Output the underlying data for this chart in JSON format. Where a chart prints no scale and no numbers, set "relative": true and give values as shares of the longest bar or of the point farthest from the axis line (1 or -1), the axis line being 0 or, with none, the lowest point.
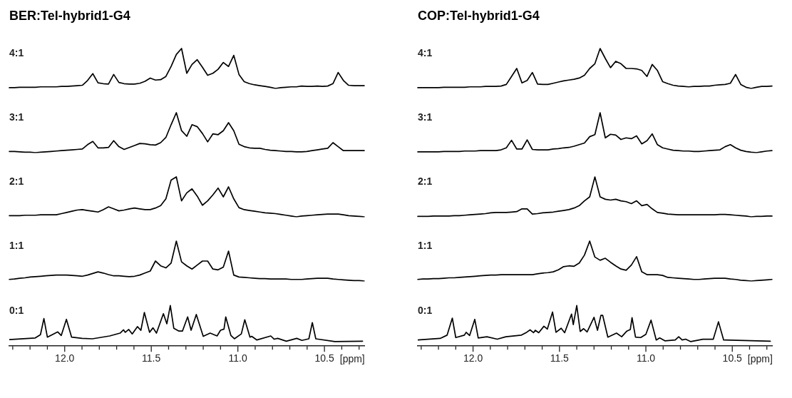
{
  "chart_data": [
    {
      "type": "line",
      "title": "BER:Tel-hybrid1-G4",
      "relative": true,
      "tick_labels": false,
      "marker": "none",
      "categories": [
        null,
        null,
        null,
        null,
        null,
        null,
        null,
        null,
        null,
        null,
        null,
        null,
        null,
        null,
        null,
        null,
        null,
        null,
        null,
        null,
        null,
        null,
        null,
        null,
        null,
        null,
        null,
        null,
        null,
        null,
        null,
        null,
        null,
        null,
        null,
        null,
        null,
        null,
        null,
        null,
        null,
        null,
        null,
        null,
        null,
        null,
        null,
        null,
        null,
        null,
        null,
        null,
        null,
        null,
        null,
        null,
        null,
        null,
        null,
        null,
        null,
        null,
        null,
        null,
        null,
        null,
        null,
        null,
        null
      ],
      "series": [
        {
          "name": "4:1",
          "color": "#000000",
          "values": [
            0.02,
            0.02,
            0.03,
            0.03,
            0.03,
            0.03,
            0.04,
            0.04,
            0.04,
            0.04,
            0.05,
            0.05,
            0.06,
            0.07,
            0.08,
            0.2,
            0.37,
            0.14,
            0.12,
            0.11,
            0.35,
            0.15,
            0.12,
            0.11,
            0.11,
            0.13,
            0.18,
            0.26,
            0.21,
            0.22,
            0.3,
            0.55,
            0.85,
            1.0,
            0.38,
            0.6,
            0.72,
            0.53,
            0.33,
            0.38,
            0.48,
            0.65,
            0.55,
            0.83,
            0.35,
            0.17,
            0.12,
            0.09,
            0.07,
            0.05,
            0.03,
            0,
            0.02,
            0.03,
            0.04,
            0.04,
            0.06,
            0.05,
            0.05,
            0.06,
            0.05,
            0.06,
            0.12,
            0.4,
            0.2,
            0.08,
            0.07,
            0.07,
            0.07
          ]
        }
      ]
    },
    {
      "type": "line",
      "title": "COP:Tel-hybrid1-G4",
      "relative": true,
      "tick_labels": false,
      "marker": "none",
      "categories": [
        null,
        null,
        null,
        null,
        null,
        null,
        null,
        null,
        null,
        null,
        null,
        null,
        null,
        null,
        null,
        null,
        null,
        null,
        null,
        null,
        null,
        null,
        null,
        null,
        null,
        null,
        null,
        null,
        null,
        null,
        null,
        null,
        null,
        null,
        null,
        null,
        null,
        null,
        null,
        null,
        null,
        null,
        null,
        null,
        null,
        null,
        null,
        null,
        null,
        null,
        null,
        null,
        null,
        null,
        null,
        null,
        null,
        null,
        null,
        null,
        null,
        null,
        null,
        null,
        null,
        null,
        null,
        null,
        null
      ],
      "series": [
        {
          "name": "4:1",
          "color": "#000000",
          "values": [
            0.02,
            0.02,
            0.02,
            0.02,
            0.02,
            0.03,
            0.03,
            0.03,
            0.03,
            0.03,
            0.04,
            0.04,
            0.04,
            0.05,
            0.05,
            0.05,
            0.06,
            0.1,
            0.3,
            0.5,
            0.14,
            0.2,
            0.4,
            0.11,
            0.1,
            0.1,
            0.13,
            0.16,
            0.19,
            0.21,
            0.23,
            0.26,
            0.33,
            0.5,
            0.62,
            1.0,
            0.75,
            0.52,
            0.68,
            0.62,
            0.5,
            0.5,
            0.49,
            0.45,
            0.3,
            0.6,
            0.45,
            0.17,
            0.12,
            0.08,
            0.06,
            0.05,
            0.04,
            0.05,
            0.05,
            0.06,
            0.06,
            0.08,
            0.09,
            0.1,
            0.13,
            0.35,
            0.1,
            0.03,
            0,
            0.03,
            0.05,
            0.05,
            0.06
          ]
        }
      ]
    },
    {
      "type": "line",
      "relative": true,
      "tick_labels": false,
      "marker": "none",
      "categories": [
        null,
        null,
        null,
        null,
        null,
        null,
        null,
        null,
        null,
        null,
        null,
        null,
        null,
        null,
        null,
        null,
        null,
        null,
        null,
        null,
        null,
        null,
        null,
        null,
        null,
        null,
        null,
        null,
        null,
        null,
        null,
        null,
        null,
        null,
        null,
        null,
        null,
        null,
        null,
        null,
        null,
        null,
        null,
        null,
        null,
        null,
        null,
        null,
        null,
        null,
        null,
        null,
        null,
        null,
        null,
        null,
        null,
        null,
        null,
        null,
        null,
        null,
        null,
        null,
        null,
        null,
        null,
        null,
        null
      ],
      "series": [
        {
          "name": "3:1",
          "color": "#000000",
          "values": [
            0.03,
            0.03,
            0.02,
            0.01,
            0.01,
            0,
            0.01,
            0.02,
            0.03,
            0.04,
            0.05,
            0.06,
            0.07,
            0.08,
            0.09,
            0.2,
            0.28,
            0.12,
            0.12,
            0.13,
            0.3,
            0.15,
            0.08,
            0.13,
            0.18,
            0.23,
            0.22,
            0.2,
            0.19,
            0.25,
            0.38,
            0.7,
            1.0,
            0.55,
            0.41,
            0.7,
            0.65,
            0.48,
            0.27,
            0.47,
            0.45,
            0.55,
            0.75,
            0.55,
            0.21,
            0.15,
            0.12,
            0.11,
            0.11,
            0.08,
            0.06,
            0.05,
            0.04,
            0.03,
            0.03,
            0.02,
            0.02,
            0.03,
            0.05,
            0.07,
            0.09,
            0.11,
            0.25,
            0.15,
            0.05,
            0.05,
            0.05,
            0.05,
            0.05
          ]
        }
      ]
    },
    {
      "type": "line",
      "relative": true,
      "tick_labels": false,
      "marker": "none",
      "categories": [
        null,
        null,
        null,
        null,
        null,
        null,
        null,
        null,
        null,
        null,
        null,
        null,
        null,
        null,
        null,
        null,
        null,
        null,
        null,
        null,
        null,
        null,
        null,
        null,
        null,
        null,
        null,
        null,
        null,
        null,
        null,
        null,
        null,
        null,
        null,
        null,
        null,
        null,
        null,
        null,
        null,
        null,
        null,
        null,
        null,
        null,
        null,
        null,
        null,
        null,
        null,
        null,
        null,
        null,
        null,
        null,
        null,
        null,
        null,
        null,
        null,
        null,
        null,
        null,
        null,
        null,
        null,
        null,
        null
      ],
      "series": [
        {
          "name": "3:1",
          "color": "#000000",
          "values": [
            0.02,
            0.02,
            0.02,
            0.02,
            0.02,
            0.03,
            0.03,
            0.03,
            0.03,
            0.04,
            0.04,
            0.04,
            0.05,
            0.05,
            0.05,
            0.05,
            0.07,
            0.12,
            0.31,
            0.09,
            0.09,
            0.32,
            0.08,
            0.07,
            0.07,
            0.07,
            0.09,
            0.1,
            0.12,
            0.13,
            0.16,
            0.2,
            0.24,
            0.4,
            0.45,
            1.0,
            0.37,
            0.46,
            0.44,
            0.33,
            0.37,
            0.35,
            0.42,
            0.22,
            0.3,
            0.47,
            0.2,
            0.12,
            0.09,
            0.06,
            0.05,
            0.04,
            0.04,
            0.03,
            0.03,
            0.04,
            0.05,
            0.06,
            0.07,
            0.15,
            0.2,
            0.12,
            0.06,
            0.03,
            0.01,
            0,
            0.02,
            0.04,
            0.05
          ]
        }
      ]
    },
    {
      "type": "line",
      "relative": true,
      "tick_labels": false,
      "marker": "none",
      "categories": [
        null,
        null,
        null,
        null,
        null,
        null,
        null,
        null,
        null,
        null,
        null,
        null,
        null,
        null,
        null,
        null,
        null,
        null,
        null,
        null,
        null,
        null,
        null,
        null,
        null,
        null,
        null,
        null,
        null,
        null,
        null,
        null,
        null,
        null,
        null,
        null,
        null,
        null,
        null,
        null,
        null,
        null,
        null,
        null,
        null,
        null,
        null,
        null,
        null,
        null,
        null,
        null,
        null,
        null,
        null,
        null,
        null,
        null,
        null,
        null,
        null,
        null,
        null,
        null,
        null,
        null,
        null,
        null,
        null
      ],
      "series": [
        {
          "name": "2:1",
          "color": "#000000",
          "values": [
            0.03,
            0.03,
            0.03,
            0.04,
            0.04,
            0.04,
            0.05,
            0.05,
            0.05,
            0.05,
            0.08,
            0.11,
            0.14,
            0.17,
            0.18,
            0.16,
            0.14,
            0.12,
            0.18,
            0.25,
            0.2,
            0.15,
            0.17,
            0.2,
            0.22,
            0.2,
            0.18,
            0.18,
            0.22,
            0.28,
            0.45,
            0.92,
            1.0,
            0.4,
            0.6,
            0.7,
            0.52,
            0.29,
            0.4,
            0.55,
            0.72,
            0.5,
            0.75,
            0.45,
            0.23,
            0.18,
            0.16,
            0.14,
            0.12,
            0.1,
            0.09,
            0.08,
            0.06,
            0.04,
            0.02,
            0,
            0.02,
            0.03,
            0.04,
            0.05,
            0.06,
            0.07,
            0.07,
            0.07,
            0.05,
            0.03,
            0.02,
            0.01,
            0
          ]
        }
      ]
    },
    {
      "type": "line",
      "relative": true,
      "tick_labels": false,
      "marker": "none",
      "categories": [
        null,
        null,
        null,
        null,
        null,
        null,
        null,
        null,
        null,
        null,
        null,
        null,
        null,
        null,
        null,
        null,
        null,
        null,
        null,
        null,
        null,
        null,
        null,
        null,
        null,
        null,
        null,
        null,
        null,
        null,
        null,
        null,
        null,
        null,
        null,
        null,
        null,
        null,
        null,
        null,
        null,
        null,
        null,
        null,
        null,
        null,
        null,
        null,
        null,
        null,
        null,
        null,
        null,
        null,
        null,
        null,
        null,
        null,
        null,
        null,
        null,
        null,
        null,
        null,
        null,
        null,
        null,
        null,
        null
      ],
      "series": [
        {
          "name": "2:1",
          "color": "#000000",
          "values": [
            0.01,
            0.01,
            0.01,
            0.02,
            0.02,
            0.02,
            0.02,
            0.03,
            0.03,
            0.04,
            0.05,
            0.06,
            0.07,
            0.08,
            0.1,
            0.11,
            0.11,
            0.11,
            0.12,
            0.13,
            0.2,
            0.2,
            0.07,
            0.08,
            0.1,
            0.11,
            0.12,
            0.14,
            0.16,
            0.18,
            0.22,
            0.28,
            0.4,
            0.5,
            1.0,
            0.5,
            0.44,
            0.42,
            0.44,
            0.4,
            0.38,
            0.33,
            0.4,
            0.28,
            0.31,
            0.2,
            0.11,
            0.09,
            0.07,
            0.06,
            0.05,
            0.05,
            0.05,
            0.05,
            0.05,
            0.05,
            0.05,
            0.05,
            0.06,
            0.06,
            0.05,
            0.04,
            0.03,
            0.02,
            0,
            0.01,
            0.01,
            0.02,
            0.02
          ]
        }
      ]
    },
    {
      "type": "line",
      "relative": true,
      "tick_labels": false,
      "marker": "none",
      "categories": [
        null,
        null,
        null,
        null,
        null,
        null,
        null,
        null,
        null,
        null,
        null,
        null,
        null,
        null,
        null,
        null,
        null,
        null,
        null,
        null,
        null,
        null,
        null,
        null,
        null,
        null,
        null,
        null,
        null,
        null,
        null,
        null,
        null,
        null,
        null,
        null,
        null,
        null,
        null,
        null,
        null,
        null,
        null,
        null,
        null,
        null,
        null,
        null,
        null,
        null,
        null,
        null,
        null,
        null,
        null,
        null,
        null,
        null,
        null,
        null,
        null,
        null,
        null,
        null,
        null,
        null,
        null,
        null,
        null
      ],
      "series": [
        {
          "name": "1:1",
          "color": "#000000",
          "values": [
            0.04,
            0.05,
            0.07,
            0.08,
            0.1,
            0.11,
            0.12,
            0.13,
            0.14,
            0.15,
            0.15,
            0.15,
            0.14,
            0.13,
            0.12,
            0.15,
            0.19,
            0.23,
            0.2,
            0.16,
            0.13,
            0.13,
            0.12,
            0.11,
            0.12,
            0.15,
            0.2,
            0.25,
            0.5,
            0.38,
            0.33,
            0.45,
            1.0,
            0.48,
            0.38,
            0.3,
            0.4,
            0.5,
            0.5,
            0.3,
            0.28,
            0.35,
            0.75,
            0.15,
            0.1,
            0.09,
            0.08,
            0.07,
            0.06,
            0.06,
            0.05,
            0.05,
            0.05,
            0.05,
            0.04,
            0.04,
            0.04,
            0.05,
            0.06,
            0.07,
            0.07,
            0.07,
            0.05,
            0.04,
            0.03,
            0.02,
            0.01,
            0.01,
            0
          ]
        }
      ]
    },
    {
      "type": "line",
      "relative": true,
      "tick_labels": false,
      "marker": "none",
      "categories": [
        null,
        null,
        null,
        null,
        null,
        null,
        null,
        null,
        null,
        null,
        null,
        null,
        null,
        null,
        null,
        null,
        null,
        null,
        null,
        null,
        null,
        null,
        null,
        null,
        null,
        null,
        null,
        null,
        null,
        null,
        null,
        null,
        null,
        null,
        null,
        null,
        null,
        null,
        null,
        null,
        null,
        null,
        null,
        null,
        null,
        null,
        null,
        null,
        null,
        null,
        null,
        null,
        null,
        null,
        null,
        null,
        null,
        null,
        null,
        null,
        null,
        null,
        null,
        null,
        null,
        null,
        null,
        null,
        null
      ],
      "series": [
        {
          "name": "1:1",
          "color": "#000000",
          "values": [
            0.04,
            0.05,
            0.05,
            0.06,
            0.06,
            0.07,
            0.08,
            0.08,
            0.09,
            0.1,
            0.11,
            0.12,
            0.13,
            0.14,
            0.15,
            0.15,
            0.16,
            0.16,
            0.16,
            0.16,
            0.16,
            0.16,
            0.16,
            0.18,
            0.2,
            0.21,
            0.23,
            0.28,
            0.36,
            0.38,
            0.37,
            0.45,
            0.65,
            1.0,
            0.6,
            0.52,
            0.57,
            0.47,
            0.38,
            0.3,
            0.27,
            0.4,
            0.61,
            0.23,
            0.16,
            0.16,
            0.16,
            0.14,
            0.09,
            0.08,
            0.07,
            0.06,
            0.05,
            0.04,
            0.04,
            0.05,
            0.06,
            0.07,
            0.07,
            0.07,
            0.05,
            0.04,
            0.02,
            0.01,
            0,
            0.01,
            0.02,
            0.03,
            0.04
          ]
        }
      ]
    },
    {
      "type": "line",
      "relative": true,
      "xlim": [
        12.32,
        10.27
      ],
      "tick_labels": "x",
      "marker": "none",
      "xlabel": "[ppm]",
      "xticks": [
        {
          "value": 12.3,
          "label": null
        },
        {
          "value": 12.2,
          "label": null
        },
        {
          "value": 12.1,
          "label": null
        },
        {
          "value": 12,
          "label": "12.0"
        },
        {
          "value": 11.9,
          "label": null
        },
        {
          "value": 11.8,
          "label": null
        },
        {
          "value": 11.7,
          "label": null
        },
        {
          "value": 11.6,
          "label": null
        },
        {
          "value": 11.5,
          "label": "11.5"
        },
        {
          "value": 11.4,
          "label": null
        },
        {
          "value": 11.3,
          "label": null
        },
        {
          "value": 11.2,
          "label": null
        },
        {
          "value": 11.1,
          "label": null
        },
        {
          "value": 11,
          "label": "11.0"
        },
        {
          "value": 10.9,
          "label": null
        },
        {
          "value": 10.8,
          "label": null
        },
        {
          "value": 10.7,
          "label": null
        },
        {
          "value": 10.6,
          "label": null
        },
        {
          "value": 10.5,
          "label": "10.5"
        },
        {
          "value": 10.4,
          "label": null
        },
        {
          "value": 10.3,
          "label": null
        }
      ],
      "x": [
        12.32,
        12.17,
        12.14,
        12.12,
        12.1,
        12.04,
        12.02,
        11.99,
        11.96,
        11.9,
        11.84,
        11.74,
        11.68,
        11.66,
        11.65,
        11.63,
        11.61,
        11.58,
        11.56,
        11.54,
        11.51,
        11.49,
        11.47,
        11.43,
        11.41,
        11.39,
        11.37,
        11.34,
        11.32,
        11.29,
        11.27,
        11.24,
        11.2,
        11.16,
        11.12,
        11.1,
        11.08,
        11.07,
        11.04,
        11.02,
        10.98,
        10.96,
        10.93,
        10.92,
        10.89,
        10.81,
        10.79,
        10.77,
        10.72,
        10.66,
        10.63,
        10.59,
        10.57,
        10.55,
        10.44,
        10.28
      ],
      "series": [
        {
          "name": "0:1",
          "color": "#000000",
          "values": [
            0.16,
            0.2,
            0.28,
            0.68,
            0.22,
            0.35,
            0.26,
            0.66,
            0.22,
            0.19,
            0.18,
            0.25,
            0.32,
            0.4,
            0.34,
            0.41,
            0.3,
            0.48,
            0.39,
            0.83,
            0.34,
            0.45,
            0.32,
            0.8,
            0.55,
            1.0,
            0.44,
            0.37,
            0.37,
            0.72,
            0.39,
            0.78,
            0.24,
            0.32,
            0.25,
            0.39,
            0.42,
            0.72,
            0.26,
            0.18,
            0.3,
            0.65,
            0.22,
            0.24,
            0.15,
            0.25,
            0.17,
            0.19,
            0.12,
            0.19,
            0.14,
            0.18,
            0.58,
            0.18,
            0.11,
            0.12
          ]
        }
      ]
    },
    {
      "type": "line",
      "relative": true,
      "xlim": [
        12.32,
        10.27
      ],
      "tick_labels": "x",
      "marker": "none",
      "xlabel": "[ppm]",
      "xticks": [
        {
          "value": 12.3,
          "label": null
        },
        {
          "value": 12.2,
          "label": null
        },
        {
          "value": 12.1,
          "label": null
        },
        {
          "value": 12,
          "label": "12.0"
        },
        {
          "value": 11.9,
          "label": null
        },
        {
          "value": 11.8,
          "label": null
        },
        {
          "value": 11.7,
          "label": null
        },
        {
          "value": 11.6,
          "label": null
        },
        {
          "value": 11.5,
          "label": "11.5"
        },
        {
          "value": 11.4,
          "label": null
        },
        {
          "value": 11.3,
          "label": null
        },
        {
          "value": 11.2,
          "label": null
        },
        {
          "value": 11.1,
          "label": null
        },
        {
          "value": 11,
          "label": "11.0"
        },
        {
          "value": 10.9,
          "label": null
        },
        {
          "value": 10.8,
          "label": null
        },
        {
          "value": 10.7,
          "label": null
        },
        {
          "value": 10.6,
          "label": null
        },
        {
          "value": 10.5,
          "label": "10.5"
        },
        {
          "value": 10.4,
          "label": null
        },
        {
          "value": 10.3,
          "label": null
        }
      ],
      "x": [
        12.32,
        12.19,
        12.15,
        12.12,
        12.1,
        12.05,
        12.04,
        12.02,
        11.99,
        11.97,
        11.92,
        11.86,
        11.81,
        11.72,
        11.69,
        11.67,
        11.65,
        11.64,
        11.62,
        11.59,
        11.57,
        11.54,
        11.52,
        11.49,
        11.47,
        11.43,
        11.42,
        11.4,
        11.38,
        11.36,
        11.34,
        11.3,
        11.28,
        11.26,
        11.25,
        11.22,
        11.17,
        11.14,
        11.11,
        11.09,
        11.08,
        11.06,
        11.03,
        11.0,
        10.97,
        10.94,
        10.92,
        10.89,
        10.83,
        10.81,
        10.79,
        10.77,
        10.74,
        10.67,
        10.61,
        10.58,
        10.55,
        10.28
      ],
      "series": [
        {
          "name": "0:1",
          "color": "#000000",
          "values": [
            0.15,
            0.19,
            0.27,
            0.69,
            0.21,
            0.27,
            0.34,
            0.26,
            0.66,
            0.2,
            0.23,
            0.17,
            0.23,
            0.27,
            0.34,
            0.4,
            0.33,
            0.39,
            0.33,
            0.49,
            0.42,
            0.84,
            0.34,
            0.44,
            0.33,
            0.79,
            0.53,
            1.0,
            0.36,
            0.43,
            0.35,
            0.71,
            0.39,
            0.76,
            0.76,
            0.22,
            0.32,
            0.23,
            0.37,
            0.41,
            0.7,
            0.22,
            0.21,
            0.29,
            0.64,
            0.15,
            0.2,
            0.13,
            0.15,
            0.23,
            0.15,
            0.17,
            0.11,
            0.17,
            0.17,
            0.6,
            0.15,
            0.12
          ]
        }
      ]
    }
  ]
}
